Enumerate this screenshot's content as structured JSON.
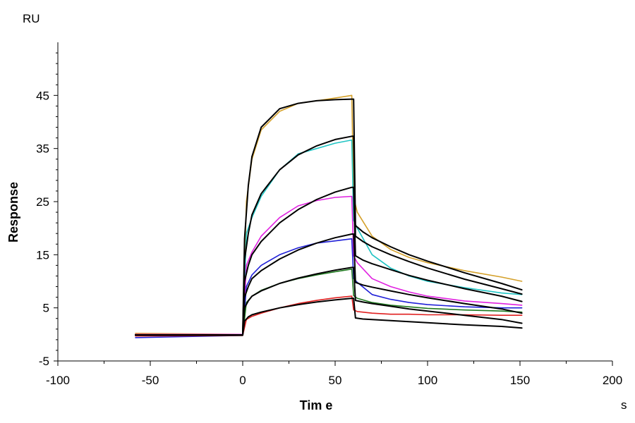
{
  "chart_data": {
    "type": "line",
    "title": "",
    "xlabel": "Tim e",
    "ylabel": "Response",
    "x_unit": "s",
    "y_unit": "RU",
    "xlim": [
      -100,
      200
    ],
    "ylim": [
      -5,
      55
    ],
    "x_ticks": [
      "-100",
      "-50",
      "0",
      "50",
      "100",
      "150",
      "200"
    ],
    "y_ticks": [
      "-5",
      "5",
      "15",
      "25",
      "35",
      "45"
    ],
    "grid": false,
    "legend": "none",
    "series": [
      {
        "color": "#D4A02A",
        "x": [
          -58,
          0,
          2,
          5,
          10,
          20,
          30,
          40,
          50,
          59,
          60,
          62,
          70,
          80,
          90,
          100,
          120,
          140,
          151
        ],
        "y": [
          0.2,
          0,
          25,
          33,
          38.5,
          42,
          43.5,
          44,
          44.5,
          45,
          25.8,
          23,
          18.5,
          16,
          14.5,
          13.5,
          12,
          10.8,
          10
        ]
      },
      {
        "color": "#20C4C4",
        "x": [
          -58,
          0,
          2,
          5,
          10,
          20,
          30,
          40,
          50,
          59,
          60,
          62,
          70,
          80,
          90,
          100,
          120,
          140,
          151
        ],
        "y": [
          0,
          0,
          19,
          22,
          26,
          31,
          34,
          35,
          36,
          36.6,
          21.5,
          20,
          15,
          12.5,
          11,
          10,
          8.8,
          7.8,
          7.5
        ]
      },
      {
        "color": "#E020E0",
        "x": [
          -58,
          0,
          2,
          5,
          10,
          20,
          30,
          40,
          50,
          59,
          60,
          62,
          70,
          80,
          90,
          100,
          120,
          140,
          151
        ],
        "y": [
          0,
          0,
          13,
          15.5,
          18.5,
          22,
          24.2,
          25.2,
          25.8,
          26,
          14.8,
          13.5,
          10.5,
          9,
          8,
          7.2,
          6.3,
          5.8,
          5.5
        ]
      },
      {
        "color": "#2020D8",
        "x": [
          -58,
          0,
          2,
          5,
          10,
          20,
          30,
          40,
          50,
          59,
          60,
          62,
          70,
          80,
          90,
          100,
          120,
          140,
          151
        ],
        "y": [
          -0.6,
          -0.2,
          9,
          11.2,
          13,
          15,
          16.3,
          17.2,
          17.6,
          18,
          10.5,
          9.8,
          7.5,
          6.6,
          6,
          5.6,
          5.2,
          5,
          5
        ]
      },
      {
        "color": "#207A20",
        "x": [
          -58,
          0,
          2,
          5,
          10,
          20,
          30,
          40,
          50,
          59,
          60,
          62,
          70,
          80,
          90,
          100,
          120,
          140,
          151
        ],
        "y": [
          -0.2,
          -0.2,
          6,
          7.2,
          8.3,
          9.6,
          10.5,
          11.2,
          11.8,
          12.3,
          7.3,
          6.8,
          6,
          5.5,
          5.2,
          4.9,
          4.6,
          4.4,
          4.2
        ]
      },
      {
        "color": "#E02020",
        "x": [
          -58,
          0,
          2,
          5,
          10,
          20,
          30,
          40,
          50,
          59,
          60,
          62,
          70,
          80,
          90,
          100,
          120,
          140,
          151
        ],
        "y": [
          -0.3,
          -0.2,
          2.8,
          3.4,
          4,
          5,
          5.8,
          6.4,
          6.9,
          7.2,
          4.6,
          4.3,
          4,
          3.8,
          3.8,
          3.7,
          3.7,
          3.6,
          3.6
        ]
      },
      {
        "color": "#000000",
        "x": [
          -58,
          0,
          1,
          3,
          5,
          10,
          20,
          30,
          40,
          50,
          59,
          60,
          61,
          65,
          70,
          80,
          90,
          100,
          120,
          140,
          151
        ],
        "y": [
          -0.1,
          -0.1,
          18,
          28,
          33.5,
          39,
          42.5,
          43.5,
          44,
          44.2,
          44.3,
          44.3,
          20.5,
          19.3,
          18.2,
          16.5,
          15,
          13.8,
          11.6,
          9.6,
          8.4
        ]
      },
      {
        "color": "#000000",
        "x": [
          -58,
          0,
          1,
          3,
          5,
          10,
          20,
          30,
          40,
          50,
          59,
          60,
          61,
          65,
          70,
          80,
          90,
          100,
          120,
          140,
          151
        ],
        "y": [
          -0.1,
          -0.1,
          14,
          19,
          22.5,
          26.5,
          31,
          33.8,
          35.5,
          36.7,
          37.3,
          37.3,
          18.5,
          17.5,
          16.5,
          15,
          13.7,
          12.5,
          10.4,
          8.6,
          7.6
        ]
      },
      {
        "color": "#000000",
        "x": [
          -58,
          0,
          1,
          3,
          5,
          10,
          20,
          30,
          40,
          50,
          59,
          60,
          61,
          65,
          70,
          80,
          90,
          100,
          120,
          140,
          151
        ],
        "y": [
          -0.1,
          -0.1,
          10,
          13,
          15,
          17.5,
          21,
          23.5,
          25.4,
          26.8,
          27.7,
          27.7,
          14.8,
          14,
          13.3,
          12.2,
          11.1,
          10.2,
          8.6,
          7.2,
          6.2
        ]
      },
      {
        "color": "#000000",
        "x": [
          -58,
          0,
          1,
          3,
          5,
          10,
          20,
          30,
          40,
          50,
          59,
          60,
          61,
          65,
          70,
          80,
          90,
          100,
          120,
          140,
          151
        ],
        "y": [
          -0.1,
          -0.1,
          7,
          9,
          10.5,
          12,
          14.2,
          15.9,
          17.2,
          18.2,
          18.9,
          18.9,
          9.8,
          9.3,
          8.9,
          8.2,
          7.5,
          6.9,
          5.8,
          4.8,
          4
        ]
      },
      {
        "color": "#000000",
        "x": [
          -58,
          0,
          1,
          3,
          5,
          10,
          20,
          30,
          40,
          50,
          59,
          60,
          61,
          65,
          70,
          80,
          90,
          100,
          120,
          140,
          151
        ],
        "y": [
          -0.1,
          -0.1,
          5,
          6.3,
          7.2,
          8.2,
          9.6,
          10.6,
          11.4,
          12.1,
          12.6,
          12.6,
          6.4,
          6.1,
          5.8,
          5.3,
          4.8,
          4.4,
          3.6,
          2.8,
          2.1
        ]
      },
      {
        "color": "#000000",
        "x": [
          -58,
          0,
          1,
          3,
          5,
          10,
          20,
          30,
          40,
          50,
          59,
          60,
          61,
          65,
          70,
          80,
          90,
          100,
          120,
          140,
          151
        ],
        "y": [
          -0.1,
          -0.1,
          2.5,
          3.3,
          3.7,
          4.2,
          5,
          5.6,
          6.1,
          6.5,
          6.8,
          6.8,
          3.1,
          2.9,
          2.8,
          2.6,
          2.4,
          2.2,
          1.8,
          1.5,
          1.2
        ]
      }
    ]
  }
}
